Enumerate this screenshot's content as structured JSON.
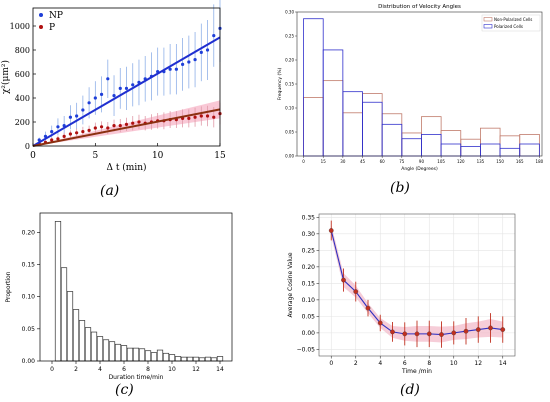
{
  "figure": {
    "captions": [
      "(a)",
      "(b)",
      "(c)",
      "(d)"
    ]
  },
  "chart_data": [
    {
      "id": "a",
      "type": "scatter",
      "xlabel": "Δ t (min)",
      "ylabel": "χ²(μm²)",
      "xlim": [
        0,
        15
      ],
      "ylim": [
        0,
        1150
      ],
      "xticks": [
        "0",
        "5",
        "10",
        "15"
      ],
      "yticks": [
        "0",
        "200",
        "400",
        "600",
        "800",
        "1000"
      ],
      "legend": {
        "position": "top-left",
        "entries": [
          "NP",
          "P"
        ]
      },
      "colors": {
        "NP": "#1f3fd8",
        "P": "#b01010",
        "fit_NP": "#1f2fd0",
        "fit_P": "#8b3010",
        "band_P": "#f7b6c8"
      },
      "series": [
        {
          "name": "NP",
          "x": [
            0.5,
            1,
            1.5,
            2,
            2.5,
            3,
            3.5,
            4,
            4.5,
            5,
            5.5,
            6,
            6.5,
            7,
            7.5,
            8,
            8.5,
            9,
            9.5,
            10,
            10.5,
            11,
            11.5,
            12,
            12.5,
            13,
            13.5,
            14,
            14.5,
            15
          ],
          "y": [
            50,
            80,
            120,
            160,
            170,
            240,
            250,
            300,
            360,
            400,
            430,
            560,
            420,
            480,
            480,
            510,
            530,
            560,
            580,
            620,
            620,
            640,
            640,
            680,
            700,
            720,
            780,
            800,
            920,
            980
          ],
          "err": [
            20,
            40,
            50,
            70,
            80,
            100,
            110,
            120,
            130,
            140,
            150,
            160,
            170,
            170,
            180,
            180,
            190,
            190,
            200,
            200,
            200,
            210,
            210,
            220,
            220,
            230,
            240,
            250,
            260,
            280
          ]
        },
        {
          "name": "P",
          "x": [
            0.5,
            1,
            1.5,
            2,
            2.5,
            3,
            3.5,
            4,
            4.5,
            5,
            5.5,
            6,
            6.5,
            7,
            7.5,
            8,
            8.5,
            9,
            9.5,
            10,
            10.5,
            11,
            11.5,
            12,
            12.5,
            13,
            13.5,
            14,
            14.5,
            15
          ],
          "y": [
            20,
            30,
            50,
            60,
            80,
            100,
            110,
            120,
            130,
            150,
            160,
            150,
            170,
            170,
            180,
            190,
            200,
            190,
            200,
            210,
            210,
            220,
            220,
            230,
            230,
            240,
            250,
            250,
            240,
            270
          ],
          "err": [
            10,
            15,
            20,
            25,
            30,
            30,
            35,
            40,
            40,
            45,
            45,
            50,
            50,
            55,
            55,
            60,
            60,
            60,
            65,
            65,
            70,
            70,
            70,
            75,
            75,
            80,
            80,
            85,
            85,
            90
          ]
        }
      ],
      "fits": [
        {
          "name": "NP",
          "x": [
            0,
            15
          ],
          "y": [
            0,
            905
          ]
        },
        {
          "name": "P",
          "x": [
            0,
            15
          ],
          "y": [
            0,
            305
          ]
        }
      ]
    },
    {
      "id": "b",
      "type": "bar",
      "title": "Distribution of Velocity Angles",
      "xlabel": "Angle (Degrees)",
      "ylabel": "Frequency (%)",
      "xlim": [
        -5,
        182
      ],
      "ylim": [
        0,
        0.3
      ],
      "xticks": [
        "0",
        "15",
        "30",
        "45",
        "60",
        "75",
        "90",
        "105",
        "120",
        "135",
        "150",
        "165",
        "180"
      ],
      "yticks": [
        "0.00",
        "0.05",
        "0.10",
        "0.15",
        "0.20",
        "0.25",
        "0.30"
      ],
      "legend": {
        "position": "top-right",
        "entries": [
          "Non-Polarized Cells",
          "Polarized Cells"
        ]
      },
      "colors": {
        "Non-Polarized Cells": "#c07a6a",
        "Polarized Cells": "#3030cc"
      },
      "bin_edges": [
        0,
        15,
        30,
        45,
        60,
        75,
        90,
        105,
        120,
        135,
        150,
        165,
        180
      ],
      "series": [
        {
          "name": "Non-Polarized Cells",
          "values": [
            0.122,
            0.157,
            0.09,
            0.13,
            0.088,
            0.048,
            0.082,
            0.053,
            0.035,
            0.058,
            0.042,
            0.045
          ]
        },
        {
          "name": "Polarized Cells",
          "values": [
            0.286,
            0.221,
            0.134,
            0.112,
            0.066,
            0.036,
            0.045,
            0.025,
            0.02,
            0.025,
            0.016,
            0.025
          ]
        }
      ]
    },
    {
      "id": "c",
      "type": "bar",
      "xlabel": "Duration time/min",
      "ylabel": "Proportion",
      "xlim": [
        -1,
        15
      ],
      "ylim": [
        0,
        0.23
      ],
      "xticks": [
        "0",
        "2",
        "4",
        "6",
        "8",
        "10",
        "12",
        "14"
      ],
      "yticks": [
        "0.00",
        "0.05",
        "0.10",
        "0.15",
        "0.20"
      ],
      "colors": {
        "bar": "#ffffff",
        "edge": "#333333"
      },
      "categories": [
        0.5,
        1,
        1.5,
        2,
        2.5,
        3,
        3.5,
        4,
        4.5,
        5,
        5.5,
        6,
        6.5,
        7,
        7.5,
        8,
        8.5,
        9,
        9.5,
        10,
        10.5,
        11,
        11.5,
        12,
        12.5,
        13,
        13.5,
        14
      ],
      "values": [
        0.217,
        0.145,
        0.108,
        0.08,
        0.063,
        0.052,
        0.045,
        0.038,
        0.033,
        0.03,
        0.026,
        0.024,
        0.02,
        0.02,
        0.019,
        0.016,
        0.013,
        0.017,
        0.012,
        0.01,
        0.007,
        0.006,
        0.006,
        0.006,
        0.005,
        0.006,
        0.005,
        0.007
      ]
    },
    {
      "id": "d",
      "type": "line",
      "xlabel": "Time /min",
      "ylabel": "Average Cosine Value",
      "xlim": [
        -1,
        15
      ],
      "ylim": [
        -0.07,
        0.36
      ],
      "xticks": [
        "0",
        "2",
        "4",
        "6",
        "8",
        "10",
        "12",
        "14"
      ],
      "yticks": [
        "−0.05",
        "0.00",
        "0.05",
        "0.10",
        "0.15",
        "0.20",
        "0.25",
        "0.30",
        "0.35"
      ],
      "grid": true,
      "colors": {
        "line": "#3030c0",
        "marker": "#c03020",
        "err": "#c03020",
        "band": "#f2b8c8"
      },
      "series": [
        {
          "name": "",
          "x": [
            0,
            1,
            2,
            3,
            4,
            5,
            6,
            7,
            8,
            9,
            10,
            11,
            12,
            13,
            14
          ],
          "y": [
            0.31,
            0.16,
            0.125,
            0.075,
            0.03,
            0.003,
            -0.003,
            -0.003,
            -0.003,
            -0.005,
            0.0,
            0.005,
            0.01,
            0.015,
            0.01
          ],
          "err": [
            0.03,
            0.035,
            0.03,
            0.025,
            0.025,
            0.03,
            0.035,
            0.04,
            0.04,
            0.04,
            0.035,
            0.04,
            0.04,
            0.045,
            0.04
          ]
        }
      ]
    }
  ]
}
